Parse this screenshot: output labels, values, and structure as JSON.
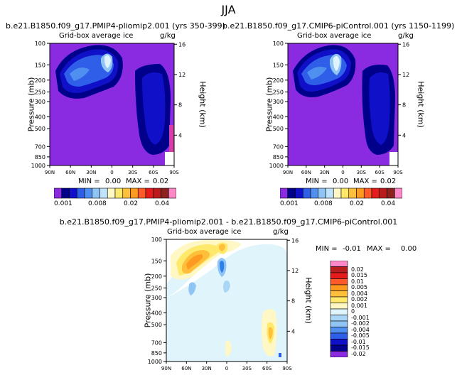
{
  "figure": {
    "title": "JJA"
  },
  "colors": {
    "background_purple": "#8a2be2",
    "ice_dark_navy": "#00008b",
    "ice_navy": "#1010c8",
    "ice_blue": "#2f5fe8",
    "ice_mid_blue": "#4f8ff0",
    "ice_light_blue": "#8fc4f5",
    "ice_pale": "#dff3ff",
    "diff_pale_blue": "#dff4fb",
    "diff_cream": "#fff7c4",
    "diff_yellow": "#ffe96a",
    "diff_orange": "#ffbf3a",
    "diff_deep_orange": "#ff9a20"
  },
  "chart_data": [
    {
      "type": "heatmap",
      "panel": "top-left",
      "title": "b.e21.B1850.f09_g17.PMIP4-pliomip2.001 (yrs 350-399)",
      "subtitle": "Grid-box average ice",
      "units": "g/kg",
      "xlabel": "",
      "ylabel": "Pressure (mb)",
      "ylabel_right": "Height (km)",
      "x_ticks": [
        "90N",
        "60N",
        "30N",
        "0",
        "30S",
        "60S",
        "90S"
      ],
      "y_ticks": [
        100,
        150,
        200,
        250,
        300,
        400,
        500,
        700,
        850,
        1000
      ],
      "y_right_ticks": [
        16,
        12,
        8,
        4
      ],
      "min_label": "MIN =",
      "min_value": "0.00",
      "max_label": "MAX =",
      "max_value": "0.02",
      "colorbar_labels": [
        "0.001",
        "0.008",
        "0.02",
        "0.04"
      ]
    },
    {
      "type": "heatmap",
      "panel": "top-right",
      "title": "b.e21.B1850.f09_g17.CMIP6-piControl.001 (yrs 1150-1199)",
      "subtitle": "Grid-box average ice",
      "units": "g/kg",
      "xlabel": "",
      "ylabel": "Pressure (mb)",
      "ylabel_right": "Height (km)",
      "x_ticks": [
        "90N",
        "60N",
        "30N",
        "0",
        "30S",
        "60S",
        "90S"
      ],
      "y_ticks": [
        100,
        150,
        200,
        250,
        300,
        400,
        500,
        700,
        850,
        1000
      ],
      "y_right_ticks": [
        16,
        12,
        8,
        4
      ],
      "min_label": "MIN =",
      "min_value": "0.00",
      "max_label": "MAX =",
      "max_value": "0.02",
      "colorbar_labels": [
        "0.001",
        "0.008",
        "0.02",
        "0.04"
      ]
    },
    {
      "type": "heatmap",
      "panel": "bottom-difference",
      "title": "b.e21.B1850.f09_g17.PMIP4-pliomip2.001 - b.e21.B1850.f09_g17.CMIP6-piControl.001",
      "subtitle": "Grid-box average ice",
      "units": "g/kg",
      "xlabel": "",
      "ylabel": "Pressure (mb)",
      "ylabel_right": "Height (km)",
      "x_ticks": [
        "90N",
        "60N",
        "30N",
        "0",
        "30S",
        "60S",
        "90S"
      ],
      "y_ticks": [
        100,
        150,
        200,
        250,
        300,
        400,
        500,
        700,
        850,
        1000
      ],
      "y_right_ticks": [
        16,
        12,
        8,
        4
      ],
      "min_label": "MIN =",
      "min_value": "-0.01",
      "max_label": "MAX =",
      "max_value": "0.00",
      "colorbar_labels": [
        "0.02",
        "0.015",
        "0.01",
        "0.005",
        "0.004",
        "0.002",
        "0.001",
        "0",
        "-0.001",
        "-0.002",
        "-0.004",
        "-0.005",
        "-0.01",
        "-0.015",
        "-0.02"
      ]
    }
  ]
}
